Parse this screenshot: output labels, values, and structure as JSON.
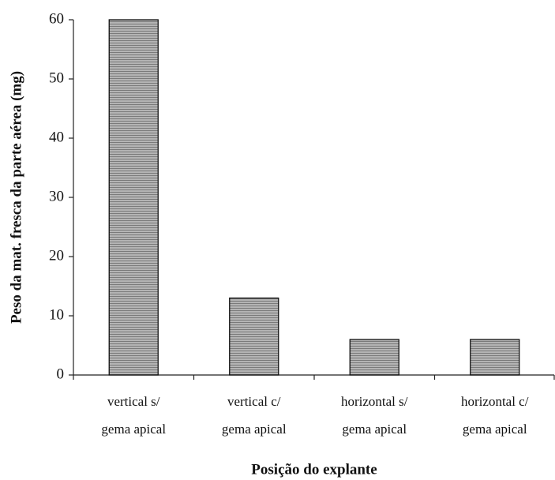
{
  "chart_data": {
    "type": "bar",
    "categories": [
      [
        "vertical s/",
        "gema apical"
      ],
      [
        "vertical c/",
        "gema apical"
      ],
      [
        "horizontal s/",
        "gema apical"
      ],
      [
        "horizontal c/",
        "gema apical"
      ]
    ],
    "values": [
      60,
      13,
      6,
      6
    ],
    "color": "#a6a6a6",
    "ylim": [
      0,
      60
    ],
    "yticks": [
      0,
      10,
      20,
      30,
      40,
      50,
      60
    ],
    "x_label": "Posição do explante",
    "y_label": "Peso da mat. fresca da parte aérea (mg)",
    "grid": false
  }
}
